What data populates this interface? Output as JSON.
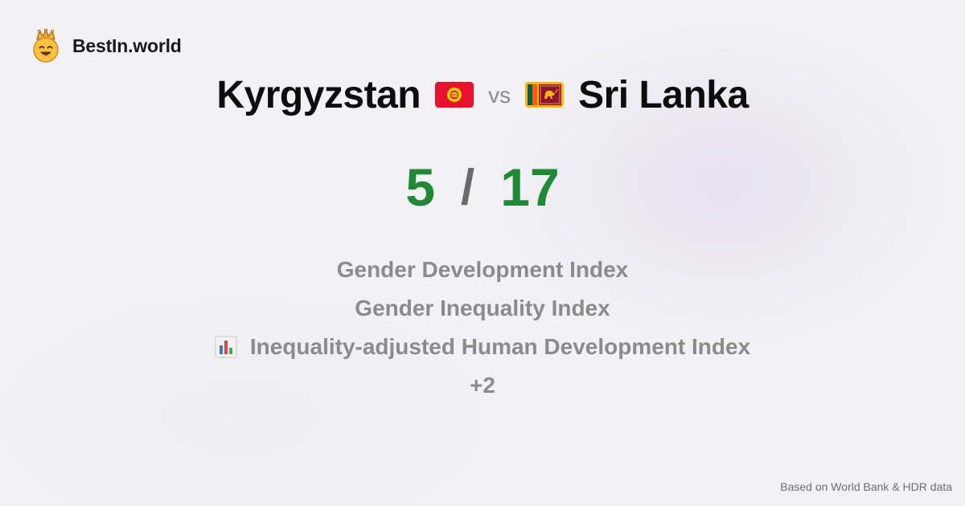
{
  "brand": {
    "name": "BestIn.world",
    "logo_icon": "crowned-smiley-icon"
  },
  "comparison": {
    "left_country": "Kyrgyzstan",
    "left_flag": "kyrgyzstan-flag-icon",
    "vs_label": "vs",
    "right_country": "Sri Lanka",
    "right_flag": "sri-lanka-flag-icon"
  },
  "score": {
    "left": "5",
    "separator": "/",
    "right": "17"
  },
  "metrics": [
    {
      "label": "Gender Development Index",
      "icon": ""
    },
    {
      "label": "Gender Inequality Index",
      "icon": ""
    },
    {
      "label": "Inequality-adjusted Human Development Index",
      "icon": "bar-chart-icon"
    },
    {
      "label": "+2",
      "icon": ""
    }
  ],
  "footer": {
    "source": "Based on World Bank & HDR data"
  },
  "colors": {
    "score_green": "#1f8a35",
    "metric_gray": "#8b8b8b",
    "background": "#f2f2f4"
  }
}
